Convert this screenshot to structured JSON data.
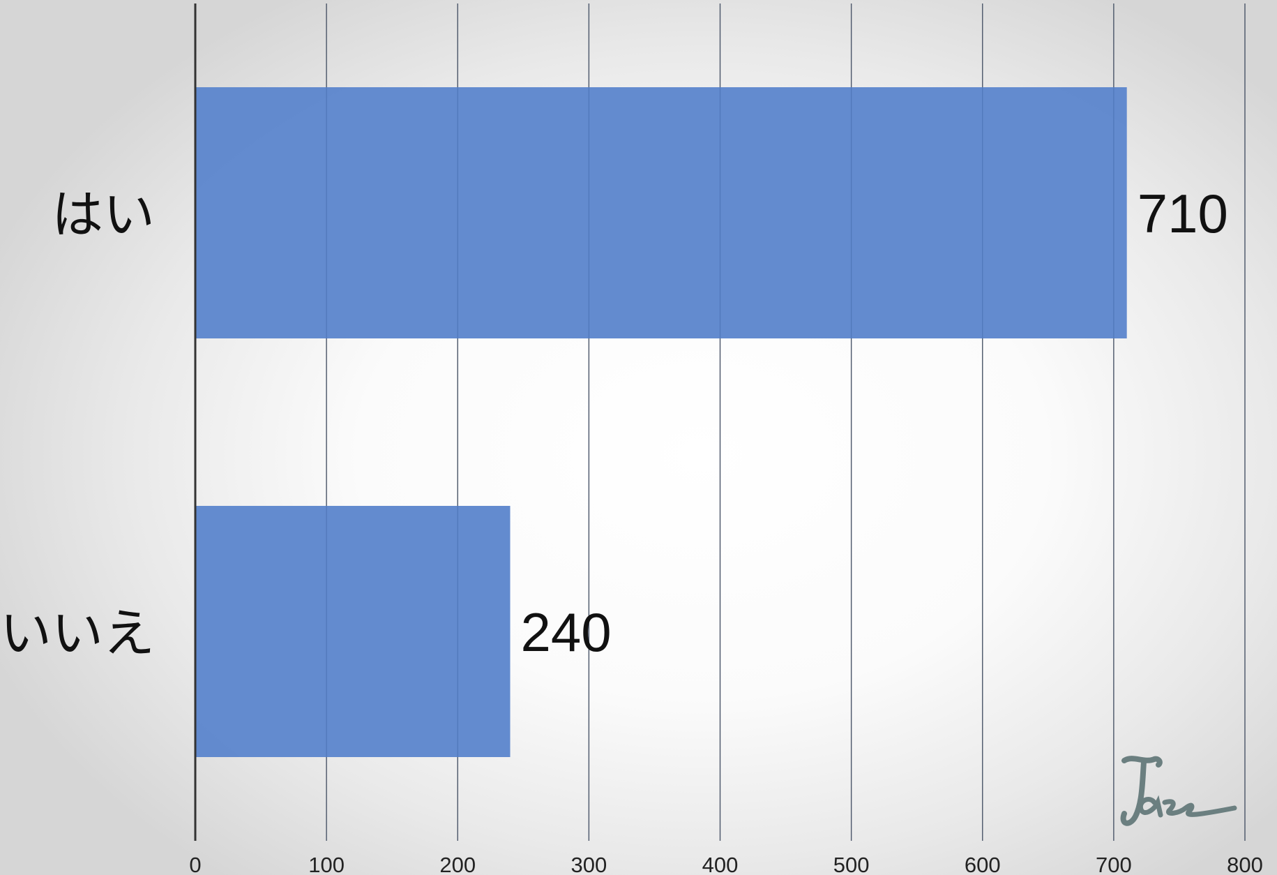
{
  "chart_data": {
    "type": "bar",
    "orientation": "horizontal",
    "categories": [
      "はい",
      "いいえ"
    ],
    "values": [
      710,
      240
    ],
    "data_labels": [
      "710",
      "240"
    ],
    "x_ticks": [
      "0",
      "100",
      "200",
      "300",
      "400",
      "500",
      "600",
      "700",
      "800"
    ],
    "xlim": [
      0,
      800
    ],
    "grid": "vertical",
    "title": "",
    "xlabel": "",
    "ylabel": "",
    "bar_color": "#5e87cd",
    "grid_color": "#555555",
    "axis_color": "#333333",
    "watermark_color": "#6b7f80"
  },
  "watermark": {
    "text": "Jazz"
  }
}
